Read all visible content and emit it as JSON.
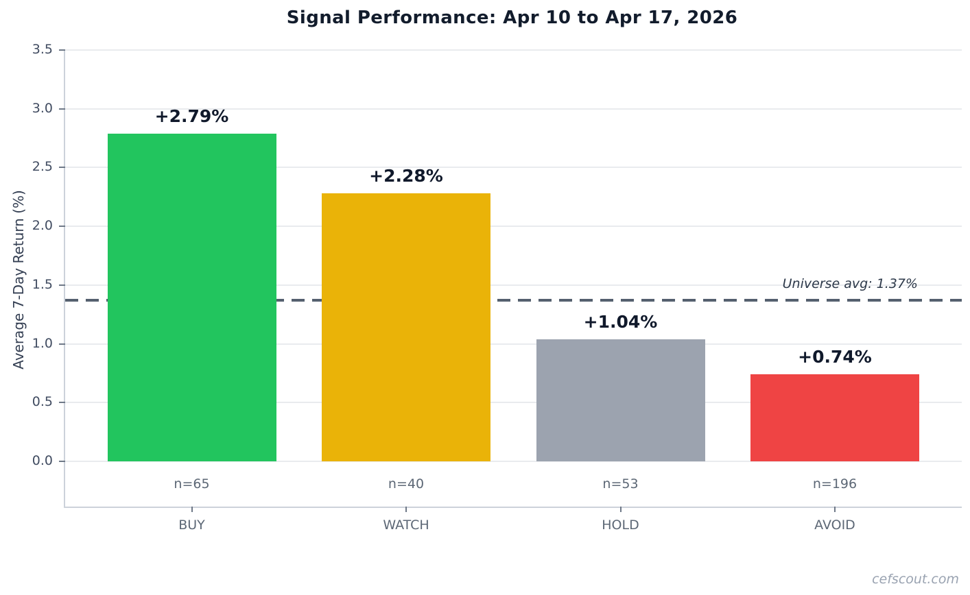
{
  "title": "Signal Performance: Apr 10 to Apr 17, 2026",
  "watermark": "cefscout.com",
  "chart_data": {
    "type": "bar",
    "title": "Signal Performance: Apr 10 to Apr 17, 2026",
    "xlabel": "",
    "ylabel": "Average 7-Day Return (%)",
    "categories": [
      "BUY",
      "WATCH",
      "HOLD",
      "AVOID"
    ],
    "values": [
      2.79,
      2.28,
      1.04,
      0.74
    ],
    "value_labels": [
      "+2.79%",
      "+2.28%",
      "+1.04%",
      "+0.74%"
    ],
    "counts": [
      "n=65",
      "n=40",
      "n=53",
      "n=196"
    ],
    "bar_colors": [
      "#22c55e",
      "#eab308",
      "#9ca3af",
      "#ef4444"
    ],
    "ylim": [
      -0.39,
      3.5
    ],
    "yticks": [
      0.0,
      0.5,
      1.0,
      1.5,
      2.0,
      2.5,
      3.0,
      3.5
    ],
    "ytick_labels": [
      "0.0",
      "0.5",
      "1.0",
      "1.5",
      "2.0",
      "2.5",
      "3.0",
      "3.5"
    ],
    "grid": true,
    "legend": false,
    "reference_line": {
      "value": 1.37,
      "label": "Universe avg: 1.37%",
      "style": "dashed",
      "color": "#55606f"
    }
  },
  "colors": {
    "background": "#ffffff",
    "title_text": "#121c2c",
    "axis_text": "#414c61",
    "muted_text": "#5c6775",
    "spine": "#ccd2da",
    "gridline": "#e9ebee",
    "watermark_text": "#9aa3b1"
  }
}
